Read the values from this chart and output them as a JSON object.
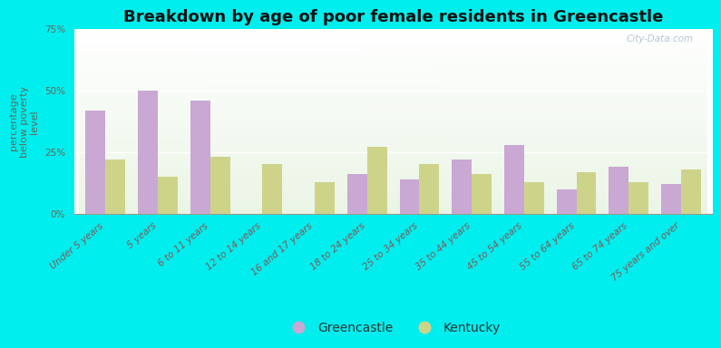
{
  "title": "Breakdown by age of poor female residents in Greencastle",
  "ylabel": "percentage\nbelow poverty\nlevel",
  "categories": [
    "Under 5 years",
    "5 years",
    "6 to 11 years",
    "12 to 14 years",
    "16 and 17 years",
    "18 to 24 years",
    "25 to 34 years",
    "35 to 44 years",
    "45 to 54 years",
    "55 to 64 years",
    "65 to 74 years",
    "75 years and over"
  ],
  "greencastle": [
    42,
    50,
    46,
    0,
    0,
    16,
    14,
    22,
    28,
    10,
    19,
    12
  ],
  "kentucky": [
    22,
    15,
    23,
    20,
    13,
    27,
    20,
    16,
    13,
    17,
    13,
    18
  ],
  "greencastle_color": "#c9a8d4",
  "kentucky_color": "#cdd48a",
  "bg_outer": "#00eeee",
  "ylim": [
    0,
    75
  ],
  "yticks": [
    0,
    25,
    50,
    75
  ],
  "ytick_labels": [
    "0%",
    "25%",
    "50%",
    "75%"
  ],
  "bar_width": 0.38,
  "title_fontsize": 13,
  "ylabel_fontsize": 8,
  "tick_fontsize": 7.5,
  "legend_fontsize": 10,
  "watermark": "City-Data.com"
}
